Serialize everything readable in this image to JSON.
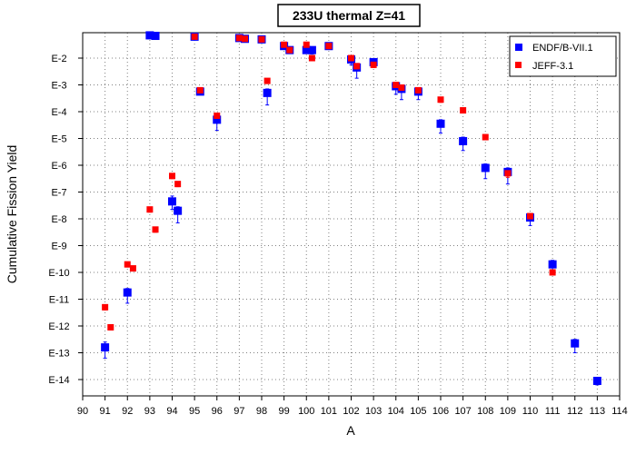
{
  "chart_data": {
    "type": "scatter",
    "title": "233U thermal Z=41",
    "xlabel": "A",
    "ylabel": "Cumulative Fission Yield",
    "xlim": [
      90,
      114
    ],
    "ylim_log10": [
      -15,
      -1.1
    ],
    "y_scale": "log",
    "x_ticks": [
      "90",
      "91",
      "92",
      "93",
      "94",
      "95",
      "96",
      "97",
      "98",
      "99",
      "100",
      "101",
      "102",
      "103",
      "104",
      "105",
      "106",
      "107",
      "108",
      "109",
      "110",
      "111",
      "112",
      "113",
      "114"
    ],
    "y_ticks": [
      {
        "exp": -2,
        "label": "E-2"
      },
      {
        "exp": -3,
        "label": "E-3"
      },
      {
        "exp": -4,
        "label": "E-4"
      },
      {
        "exp": -5,
        "label": "E-5"
      },
      {
        "exp": -6,
        "label": "E-6"
      },
      {
        "exp": -7,
        "label": "E-7"
      },
      {
        "exp": -8,
        "label": "E-8"
      },
      {
        "exp": -9,
        "label": "E-9"
      },
      {
        "exp": -10,
        "label": "E-10"
      },
      {
        "exp": -11,
        "label": "E-11"
      },
      {
        "exp": -12,
        "label": "E-12"
      },
      {
        "exp": -13,
        "label": "E-13"
      },
      {
        "exp": -14,
        "label": "E-14"
      }
    ],
    "grid": true,
    "legend_position": "top-right",
    "series": [
      {
        "name": "ENDF/B-VII.1",
        "color": "#0000ff",
        "marker": "square",
        "points": [
          {
            "x": 91.0,
            "log10y": -12.8,
            "err_lo": 0.4,
            "err_hi": 0.2
          },
          {
            "x": 92.0,
            "log10y": -10.75,
            "err_lo": 0.4,
            "err_hi": 0.15
          },
          {
            "x": 93.0,
            "log10y": -1.15,
            "err_lo": 0.05,
            "err_hi": 0.05
          },
          {
            "x": 93.25,
            "log10y": -1.17,
            "err_lo": 0.05,
            "err_hi": 0.05
          },
          {
            "x": 94.0,
            "log10y": -7.35,
            "err_lo": 0.3,
            "err_hi": 0.2
          },
          {
            "x": 94.25,
            "log10y": -7.7,
            "err_lo": 0.45,
            "err_hi": 0.15
          },
          {
            "x": 95.0,
            "log10y": -1.2,
            "err_lo": 0.05,
            "err_hi": 0.05
          },
          {
            "x": 95.25,
            "log10y": -3.25,
            "err_lo": 0.05,
            "err_hi": 0.05
          },
          {
            "x": 96.0,
            "log10y": -4.3,
            "err_lo": 0.4,
            "err_hi": 0.15
          },
          {
            "x": 97.0,
            "log10y": -1.25,
            "err_lo": 0.05,
            "err_hi": 0.05
          },
          {
            "x": 97.25,
            "log10y": -1.28,
            "err_lo": 0.05,
            "err_hi": 0.05
          },
          {
            "x": 98.0,
            "log10y": -1.3,
            "err_lo": 0.05,
            "err_hi": 0.05
          },
          {
            "x": 98.25,
            "log10y": -3.3,
            "err_lo": 0.45,
            "err_hi": 0.15
          },
          {
            "x": 99.0,
            "log10y": -1.55,
            "err_lo": 0.1,
            "err_hi": 0.08
          },
          {
            "x": 99.25,
            "log10y": -1.7,
            "err_lo": 0.08,
            "err_hi": 0.08
          },
          {
            "x": 100.0,
            "log10y": -1.7,
            "err_lo": 0.1,
            "err_hi": 0.08
          },
          {
            "x": 100.25,
            "log10y": -1.7,
            "err_lo": 0.15,
            "err_hi": 0.08
          },
          {
            "x": 101.0,
            "log10y": -1.55,
            "err_lo": 0.05,
            "err_hi": 0.05
          },
          {
            "x": 102.0,
            "log10y": -2.05,
            "err_lo": 0.2,
            "err_hi": 0.1
          },
          {
            "x": 102.25,
            "log10y": -2.35,
            "err_lo": 0.4,
            "err_hi": 0.15
          },
          {
            "x": 103.0,
            "log10y": -2.15,
            "err_lo": 0.15,
            "err_hi": 0.1
          },
          {
            "x": 104.0,
            "log10y": -3.05,
            "err_lo": 0.3,
            "err_hi": 0.15
          },
          {
            "x": 104.25,
            "log10y": -3.15,
            "err_lo": 0.4,
            "err_hi": 0.15
          },
          {
            "x": 105.0,
            "log10y": -3.25,
            "err_lo": 0.3,
            "err_hi": 0.12
          },
          {
            "x": 106.0,
            "log10y": -4.45,
            "err_lo": 0.35,
            "err_hi": 0.15
          },
          {
            "x": 107.0,
            "log10y": -5.1,
            "err_lo": 0.35,
            "err_hi": 0.15
          },
          {
            "x": 108.0,
            "log10y": -6.1,
            "err_lo": 0.4,
            "err_hi": 0.15
          },
          {
            "x": 109.0,
            "log10y": -6.25,
            "err_lo": 0.45,
            "err_hi": 0.15
          },
          {
            "x": 110.0,
            "log10y": -7.95,
            "err_lo": 0.3,
            "err_hi": 0.15
          },
          {
            "x": 111.0,
            "log10y": -9.7,
            "err_lo": 0.3,
            "err_hi": 0.15
          },
          {
            "x": 112.0,
            "log10y": -12.65,
            "err_lo": 0.35,
            "err_hi": 0.15
          },
          {
            "x": 113.0,
            "log10y": -14.05,
            "err_lo": 0.15,
            "err_hi": 0.1
          }
        ]
      },
      {
        "name": "JEFF-3.1",
        "color": "#ff0000",
        "marker": "square",
        "points": [
          {
            "x": 91.0,
            "log10y": -11.3,
            "err_lo": 0.1,
            "err_hi": 0.05
          },
          {
            "x": 91.25,
            "log10y": -12.05,
            "err_lo": 0.1,
            "err_hi": 0.05
          },
          {
            "x": 92.0,
            "log10y": -9.7,
            "err_lo": 0.1,
            "err_hi": 0.05
          },
          {
            "x": 92.25,
            "log10y": -9.85,
            "err_lo": 0.1,
            "err_hi": 0.05
          },
          {
            "x": 93.0,
            "log10y": -7.65,
            "err_lo": 0.1,
            "err_hi": 0.05
          },
          {
            "x": 93.25,
            "log10y": -8.4,
            "err_lo": 0.1,
            "err_hi": 0.05
          },
          {
            "x": 94.0,
            "log10y": -6.4,
            "err_lo": 0.1,
            "err_hi": 0.05
          },
          {
            "x": 94.25,
            "log10y": -6.7,
            "err_lo": 0.1,
            "err_hi": 0.05
          },
          {
            "x": 95.0,
            "log10y": -1.2,
            "err_lo": 0.05,
            "err_hi": 0.05
          },
          {
            "x": 95.25,
            "log10y": -3.2,
            "err_lo": 0.05,
            "err_hi": 0.05
          },
          {
            "x": 96.0,
            "log10y": -4.15,
            "err_lo": 0.1,
            "err_hi": 0.05
          },
          {
            "x": 97.0,
            "log10y": -1.25,
            "err_lo": 0.05,
            "err_hi": 0.05
          },
          {
            "x": 97.25,
            "log10y": -1.28,
            "err_lo": 0.05,
            "err_hi": 0.05
          },
          {
            "x": 98.0,
            "log10y": -1.3,
            "err_lo": 0.05,
            "err_hi": 0.05
          },
          {
            "x": 98.25,
            "log10y": -2.85,
            "err_lo": 0.1,
            "err_hi": 0.05
          },
          {
            "x": 99.0,
            "log10y": -1.5,
            "err_lo": 0.05,
            "err_hi": 0.05
          },
          {
            "x": 99.25,
            "log10y": -1.7,
            "err_lo": 0.05,
            "err_hi": 0.05
          },
          {
            "x": 100.0,
            "log10y": -1.5,
            "err_lo": 0.05,
            "err_hi": 0.05
          },
          {
            "x": 100.25,
            "log10y": -2.0,
            "err_lo": 0.05,
            "err_hi": 0.05
          },
          {
            "x": 101.0,
            "log10y": -1.55,
            "err_lo": 0.05,
            "err_hi": 0.05
          },
          {
            "x": 102.0,
            "log10y": -2.0,
            "err_lo": 0.05,
            "err_hi": 0.05
          },
          {
            "x": 102.25,
            "log10y": -2.3,
            "err_lo": 0.1,
            "err_hi": 0.05
          },
          {
            "x": 103.0,
            "log10y": -2.25,
            "err_lo": 0.1,
            "err_hi": 0.05
          },
          {
            "x": 104.0,
            "log10y": -3.0,
            "err_lo": 0.1,
            "err_hi": 0.05
          },
          {
            "x": 104.25,
            "log10y": -3.1,
            "err_lo": 0.1,
            "err_hi": 0.05
          },
          {
            "x": 105.0,
            "log10y": -3.2,
            "err_lo": 0.1,
            "err_hi": 0.05
          },
          {
            "x": 106.0,
            "log10y": -3.55,
            "err_lo": 0.1,
            "err_hi": 0.05
          },
          {
            "x": 107.0,
            "log10y": -3.95,
            "err_lo": 0.1,
            "err_hi": 0.05
          },
          {
            "x": 108.0,
            "log10y": -4.95,
            "err_lo": 0.1,
            "err_hi": 0.05
          },
          {
            "x": 109.0,
            "log10y": -6.3,
            "err_lo": 0.15,
            "err_hi": 0.05
          },
          {
            "x": 110.0,
            "log10y": -7.9,
            "err_lo": 0.1,
            "err_hi": 0.05
          },
          {
            "x": 111.0,
            "log10y": -10.0,
            "err_lo": 0.1,
            "err_hi": 0.05
          }
        ]
      }
    ]
  }
}
